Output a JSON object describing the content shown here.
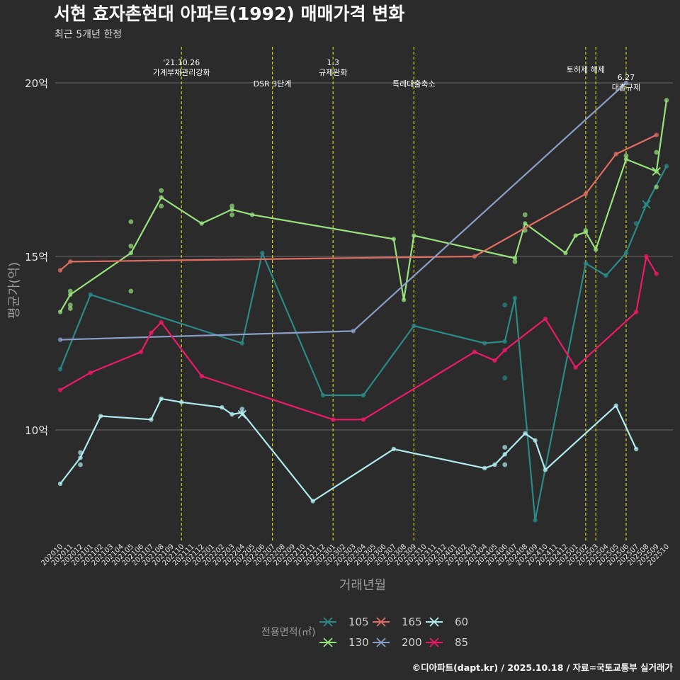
{
  "title": "서현 효자촌현대 아파트(1992) 매매가격 변화",
  "subtitle": "최근 5개년 한정",
  "caption": "©디아파트(dapt.kr) / 2025.10.18 / 자료=국토교통부 실거래가",
  "colors": {
    "background": "#2b2b2c",
    "grid": "#6a6a6a",
    "vline": "#d4d40f",
    "105": "#2a8a86",
    "130": "#98e27c",
    "165": "#e06c62",
    "200": "#8a9ec8",
    "60": "#b0eced",
    "85": "#ee1a66"
  },
  "chart_data": {
    "type": "line",
    "title": "서현 효자촌현대 아파트(1992) 매매가격 변화",
    "subtitle": "최근 5개년 한정",
    "xlabel": "거래년월",
    "ylabel": "평균가(억)",
    "ylim": [
      7,
      21
    ],
    "yticks": [
      {
        "value": 10,
        "label": "10억"
      },
      {
        "value": 15,
        "label": "15억"
      },
      {
        "value": 20,
        "label": "20억"
      }
    ],
    "x_categories": [
      "202010",
      "202011",
      "202012",
      "202101",
      "202102",
      "202103",
      "202104",
      "202105",
      "202106",
      "202107",
      "202108",
      "202109",
      "202110",
      "202111",
      "202112",
      "202201",
      "202202",
      "202203",
      "202204",
      "202205",
      "202206",
      "202207",
      "202208",
      "202209",
      "202210",
      "202211",
      "202212",
      "202301",
      "202302",
      "202303",
      "202304",
      "202305",
      "202306",
      "202307",
      "202308",
      "202309",
      "202310",
      "202311",
      "202312",
      "202401",
      "202402",
      "202403",
      "202404",
      "202405",
      "202406",
      "202407",
      "202408",
      "202409",
      "202410",
      "202411",
      "202412",
      "202501",
      "202502",
      "202503",
      "202504",
      "202505",
      "202506",
      "202507",
      "202508",
      "202509",
      "202510"
    ],
    "legend_title": "전용면적(㎡)",
    "legend_order": [
      "105",
      "130",
      "165",
      "200",
      "60",
      "85"
    ],
    "events": [
      {
        "x": 12.0,
        "lines": [
          "'21.10.26",
          "가계부채관리강화"
        ],
        "pos": "top"
      },
      {
        "x": 21.0,
        "lines": [
          "DSR 3단계"
        ],
        "pos": "mid"
      },
      {
        "x": 27.0,
        "lines": [
          "1.3",
          "규제완화"
        ],
        "pos": "top"
      },
      {
        "x": 35.0,
        "lines": [
          "특례대출축소"
        ],
        "pos": "mid"
      },
      {
        "x": 52.0,
        "lines": [
          "토허제 해제"
        ],
        "pos": "high"
      },
      {
        "x": 53.0,
        "lines": [],
        "pos": "none"
      },
      {
        "x": 56.0,
        "lines": [
          "6.27",
          "대출규제"
        ],
        "pos": "low"
      }
    ],
    "series": [
      {
        "name": "105",
        "color": "#2a8a86",
        "line": [
          [
            0,
            11.75
          ],
          [
            3,
            13.9
          ],
          [
            18,
            12.5
          ],
          [
            20,
            15.1
          ],
          [
            26,
            11.0
          ],
          [
            30,
            11.0
          ],
          [
            35,
            13.0
          ],
          [
            42,
            12.5
          ],
          [
            44,
            12.55
          ],
          [
            45,
            13.8
          ],
          [
            47,
            7.4
          ],
          [
            52,
            14.8
          ],
          [
            54,
            14.45
          ],
          [
            56,
            15.1
          ],
          [
            58,
            16.5
          ],
          [
            60,
            17.6
          ]
        ],
        "points": [
          [
            44,
            13.6
          ],
          [
            44,
            11.5
          ],
          [
            57,
            15.95
          ]
        ],
        "cross": [
          58,
          16.5
        ]
      },
      {
        "name": "130",
        "color": "#98e27c",
        "line": [
          [
            0,
            13.4
          ],
          [
            1,
            13.9
          ],
          [
            7,
            15.1
          ],
          [
            10,
            16.7
          ],
          [
            14,
            15.95
          ],
          [
            17,
            16.35
          ],
          [
            19,
            16.2
          ],
          [
            33,
            15.5
          ],
          [
            34,
            13.75
          ],
          [
            35,
            15.6
          ],
          [
            45,
            14.95
          ],
          [
            46,
            15.95
          ],
          [
            50,
            15.1
          ],
          [
            51,
            15.6
          ],
          [
            52,
            15.7
          ],
          [
            53,
            15.2
          ],
          [
            56,
            17.8
          ],
          [
            59,
            17.45
          ],
          [
            60,
            19.5
          ]
        ],
        "points": [
          [
            1,
            14.0
          ],
          [
            1,
            13.6
          ],
          [
            1,
            13.5
          ],
          [
            7,
            16.0
          ],
          [
            7,
            15.3
          ],
          [
            7,
            14.0
          ],
          [
            10,
            16.9
          ],
          [
            10,
            16.45
          ],
          [
            17,
            16.45
          ],
          [
            17,
            16.2
          ],
          [
            45,
            14.85
          ],
          [
            46,
            16.2
          ],
          [
            46,
            15.75
          ],
          [
            52,
            15.75
          ],
          [
            56,
            17.9
          ],
          [
            59,
            18.0
          ],
          [
            59,
            17.0
          ]
        ],
        "cross": [
          59,
          17.45
        ]
      },
      {
        "name": "165",
        "color": "#e06c62",
        "line": [
          [
            0,
            14.6
          ],
          [
            1,
            14.85
          ],
          [
            41,
            15.0
          ],
          [
            52,
            16.8
          ],
          [
            55,
            17.95
          ],
          [
            59,
            18.5
          ]
        ],
        "points": [],
        "cross": null
      },
      {
        "name": "200",
        "color": "#8a9ec8",
        "line": [
          [
            0,
            12.6
          ],
          [
            29,
            12.85
          ],
          [
            56,
            20.0
          ]
        ],
        "points": [],
        "cross": null
      },
      {
        "name": "60",
        "color": "#b0eced",
        "line": [
          [
            0,
            8.45
          ],
          [
            2,
            9.2
          ],
          [
            4,
            10.4
          ],
          [
            9,
            10.3
          ],
          [
            10,
            10.9
          ],
          [
            12,
            10.8
          ],
          [
            16,
            10.65
          ],
          [
            17,
            10.45
          ],
          [
            18,
            10.5
          ],
          [
            25,
            7.95
          ],
          [
            33,
            9.45
          ],
          [
            42,
            8.9
          ],
          [
            43,
            9.0
          ],
          [
            44,
            9.3
          ],
          [
            46,
            9.9
          ],
          [
            47,
            9.7
          ],
          [
            48,
            8.85
          ],
          [
            55,
            10.7
          ],
          [
            57,
            9.45
          ]
        ],
        "points": [
          [
            2,
            9.35
          ],
          [
            2,
            9.0
          ],
          [
            18,
            10.6
          ],
          [
            44,
            9.5
          ],
          [
            44,
            9.0
          ]
        ],
        "cross": [
          18,
          10.45
        ]
      },
      {
        "name": "85",
        "color": "#ee1a66",
        "line": [
          [
            0,
            11.15
          ],
          [
            3,
            11.65
          ],
          [
            8,
            12.25
          ],
          [
            9,
            12.8
          ],
          [
            10,
            13.1
          ],
          [
            14,
            11.55
          ],
          [
            27,
            10.3
          ],
          [
            30,
            10.3
          ],
          [
            41,
            12.25
          ],
          [
            43,
            12.0
          ],
          [
            44,
            12.3
          ],
          [
            48,
            13.2
          ],
          [
            51,
            11.8
          ],
          [
            57,
            13.4
          ],
          [
            58,
            15.0
          ],
          [
            59,
            14.5
          ]
        ],
        "points": [],
        "cross": null
      }
    ]
  }
}
